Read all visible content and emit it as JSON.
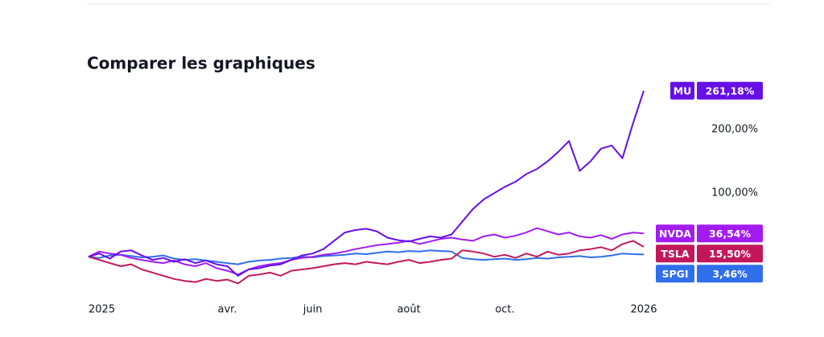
{
  "chart_data": {
    "type": "line",
    "title": "Comparer les graphiques",
    "categories": [
      "2025",
      null,
      null,
      null,
      null,
      null,
      null,
      null,
      null,
      null,
      null,
      null,
      null,
      "avr.",
      null,
      null,
      null,
      null,
      null,
      null,
      null,
      "juin",
      null,
      null,
      null,
      null,
      null,
      null,
      null,
      null,
      "août",
      null,
      null,
      null,
      null,
      null,
      null,
      null,
      null,
      "oct.",
      null,
      null,
      null,
      null,
      null,
      null,
      null,
      null,
      null,
      null,
      null,
      null,
      "2026"
    ],
    "ylim": [
      -58,
      271
    ],
    "yticks": [
      {
        "value": 100,
        "label": "100,00%"
      },
      {
        "value": 200,
        "label": "200,00%"
      }
    ],
    "grid": false,
    "series": [
      {
        "name": "MU",
        "color": "#6610e8",
        "end_label": "261,18%",
        "values": [
          0,
          5,
          -3,
          8,
          10,
          2,
          -5,
          -2,
          -8,
          -4,
          -10,
          -6,
          -12,
          -15,
          -30,
          -20,
          -18,
          -14,
          -12,
          -5,
          2,
          5,
          12,
          25,
          38,
          42,
          44,
          40,
          30,
          26,
          24,
          28,
          32,
          30,
          35,
          55,
          75,
          90,
          100,
          110,
          118,
          130,
          138,
          150,
          165,
          182,
          135,
          150,
          170,
          175,
          155,
          210,
          261.18
        ]
      },
      {
        "name": "NVDA",
        "color": "#a21cf2",
        "end_label": "36,54%",
        "values": [
          0,
          8,
          5,
          3,
          -2,
          -5,
          -8,
          -10,
          -6,
          -12,
          -15,
          -10,
          -18,
          -22,
          -28,
          -20,
          -15,
          -12,
          -10,
          -5,
          -2,
          0,
          3,
          5,
          8,
          12,
          15,
          18,
          20,
          22,
          25,
          20,
          24,
          28,
          30,
          27,
          25,
          32,
          35,
          30,
          33,
          38,
          45,
          40,
          35,
          38,
          32,
          30,
          34,
          28,
          35,
          38,
          36.54
        ]
      },
      {
        "name": "TSLA",
        "color": "#c2185b",
        "end_label": "15,50%",
        "values": [
          0,
          -5,
          -10,
          -15,
          -12,
          -20,
          -25,
          -30,
          -35,
          -38,
          -40,
          -35,
          -38,
          -36,
          -42,
          -30,
          -28,
          -25,
          -30,
          -22,
          -20,
          -18,
          -15,
          -12,
          -10,
          -12,
          -8,
          -10,
          -12,
          -8,
          -5,
          -10,
          -8,
          -5,
          -3,
          10,
          8,
          5,
          0,
          3,
          -2,
          5,
          0,
          8,
          3,
          5,
          10,
          12,
          15,
          10,
          20,
          25,
          15.5
        ]
      },
      {
        "name": "SPGI",
        "color": "#2f6fed",
        "end_label": "3,46%",
        "values": [
          0,
          -2,
          2,
          3,
          1,
          -1,
          0,
          2,
          -3,
          -5,
          -4,
          -6,
          -8,
          -10,
          -12,
          -8,
          -6,
          -5,
          -3,
          -2,
          0,
          -1,
          1,
          2,
          3,
          5,
          4,
          6,
          8,
          7,
          9,
          8,
          10,
          9,
          8,
          -2,
          -4,
          -5,
          -4,
          -3,
          -5,
          -4,
          -2,
          -3,
          -1,
          0,
          1,
          -1,
          0,
          2,
          5,
          4,
          3.46
        ]
      }
    ]
  }
}
